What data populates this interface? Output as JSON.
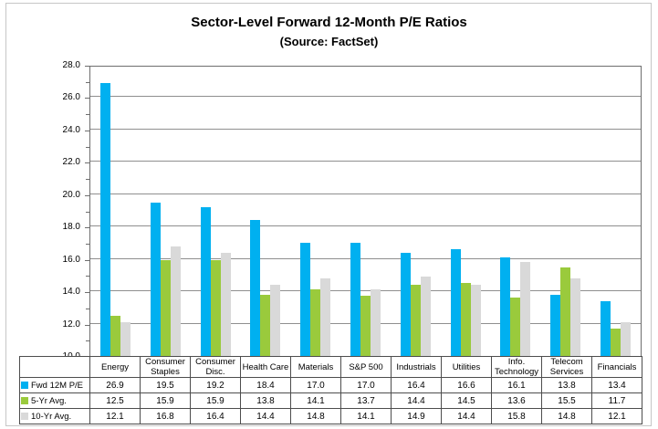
{
  "title": "Sector-Level Forward 12-Month P/E Ratios",
  "subtitle": "(Source: FactSet)",
  "chart_data": {
    "type": "bar",
    "title": "Sector-Level Forward 12-Month P/E Ratios",
    "subtitle": "(Source: FactSet)",
    "categories": [
      "Energy",
      "Consumer Staples",
      "Consumer Disc.",
      "Health Care",
      "Materials",
      "S&P 500",
      "Industrials",
      "Utilities",
      "Info. Technology",
      "Telecom Services",
      "Financials"
    ],
    "series": [
      {
        "name": "Fwd 12M P/E",
        "color": "#00B0F0",
        "values": [
          26.9,
          19.5,
          19.2,
          18.4,
          17.0,
          17.0,
          16.4,
          16.6,
          16.1,
          13.8,
          13.4
        ]
      },
      {
        "name": "5-Yr Avg.",
        "color": "#9ACA3C",
        "values": [
          12.5,
          15.9,
          15.9,
          13.8,
          14.1,
          13.7,
          14.4,
          14.5,
          13.6,
          15.5,
          11.7
        ]
      },
      {
        "name": "10-Yr Avg.",
        "color": "#D9D9D9",
        "values": [
          12.1,
          16.8,
          16.4,
          14.4,
          14.8,
          14.1,
          14.9,
          14.4,
          15.8,
          14.8,
          12.1
        ]
      }
    ],
    "ylim": [
      10.0,
      28.0
    ],
    "y_major_step": 2.0,
    "y_minor_step": 1.0,
    "grid": "horizontal",
    "gridline_color": "#8f8f8f",
    "legend_position": "data-table-left",
    "value_format": "0.0"
  }
}
